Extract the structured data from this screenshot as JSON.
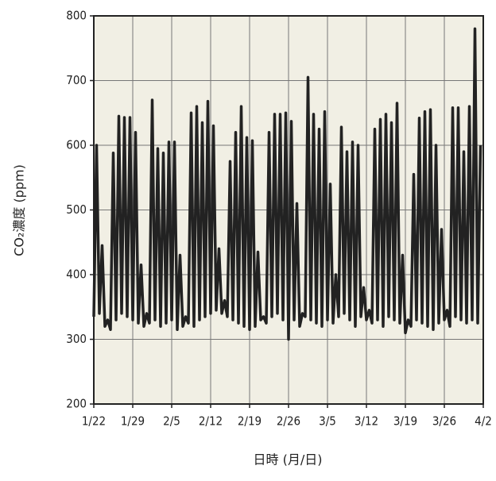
{
  "chart_data": {
    "type": "line",
    "y_label": "CO₂濃度 (ppm)",
    "x_label": "日時 (月/日)",
    "xlim": [
      0,
      70
    ],
    "xticks": [
      {
        "value": 0,
        "label": "1/22"
      },
      {
        "value": 7,
        "label": "1/29"
      },
      {
        "value": 14,
        "label": "2/5"
      },
      {
        "value": 21,
        "label": "2/12"
      },
      {
        "value": 28,
        "label": "2/19"
      },
      {
        "value": 35,
        "label": "2/26"
      },
      {
        "value": 42,
        "label": "3/5"
      },
      {
        "value": 49,
        "label": "3/12"
      },
      {
        "value": 56,
        "label": "3/19"
      },
      {
        "value": 63,
        "label": "3/26"
      },
      {
        "value": 70,
        "label": "4/2"
      }
    ],
    "ylim": [
      200,
      800
    ],
    "yticks": [
      200,
      300,
      400,
      500,
      600,
      700,
      800
    ],
    "grid": true,
    "x": [
      0,
      0.5,
      1,
      1.5,
      2,
      2.5,
      3,
      3.5,
      4,
      4.5,
      5,
      5.5,
      6,
      6.5,
      7,
      7.5,
      8,
      8.5,
      9,
      9.5,
      10,
      10.5,
      11,
      11.5,
      12,
      12.5,
      13,
      13.5,
      14,
      14.5,
      15,
      15.5,
      16,
      16.5,
      17,
      17.5,
      18,
      18.5,
      19,
      19.5,
      20,
      20.5,
      21,
      21.5,
      22,
      22.5,
      23,
      23.5,
      24,
      24.5,
      25,
      25.5,
      26,
      26.5,
      27,
      27.5,
      28,
      28.5,
      29,
      29.5,
      30,
      30.5,
      31,
      31.5,
      32,
      32.5,
      33,
      33.5,
      34,
      34.5,
      35,
      35.5,
      36,
      36.5,
      37,
      37.5,
      38,
      38.5,
      39,
      39.5,
      40,
      40.5,
      41,
      41.5,
      42,
      42.5,
      43,
      43.5,
      44,
      44.5,
      45,
      45.5,
      46,
      46.5,
      47,
      47.5,
      48,
      48.5,
      49,
      49.5,
      50,
      50.5,
      51,
      51.5,
      52,
      52.5,
      53,
      53.5,
      54,
      54.5,
      55,
      55.5,
      56,
      56.5,
      57,
      57.5,
      58,
      58.5,
      59,
      59.5,
      60,
      60.5,
      61,
      61.5,
      62,
      62.5,
      63,
      63.5,
      64,
      64.5,
      65,
      65.5,
      66,
      66.5,
      67,
      67.5,
      68,
      68.5,
      69,
      69.5
    ],
    "series": [
      {
        "color": "#222222",
        "values": [
          335,
          600,
          340,
          445,
          320,
          330,
          315,
          588,
          330,
          645,
          340,
          643,
          335,
          643,
          330,
          620,
          325,
          415,
          320,
          340,
          325,
          670,
          330,
          595,
          320,
          588,
          325,
          605,
          330,
          605,
          315,
          430,
          320,
          335,
          325,
          650,
          320,
          660,
          330,
          635,
          335,
          668,
          340,
          630,
          345,
          440,
          340,
          360,
          335,
          575,
          330,
          620,
          325,
          660,
          320,
          612,
          315,
          607,
          320,
          435,
          330,
          335,
          325,
          620,
          335,
          648,
          340,
          648,
          330,
          650,
          300,
          637,
          330,
          510,
          320,
          340,
          335,
          705,
          330,
          648,
          325,
          625,
          320,
          652,
          330,
          540,
          325,
          400,
          335,
          628,
          340,
          590,
          330,
          605,
          320,
          600,
          335,
          380,
          330,
          345,
          325,
          625,
          330,
          640,
          320,
          648,
          335,
          635,
          330,
          665,
          325,
          430,
          310,
          330,
          320,
          555,
          330,
          642,
          325,
          652,
          320,
          655,
          315,
          600,
          325,
          470,
          330,
          345,
          320,
          658,
          335,
          658,
          330,
          590,
          325,
          660,
          330,
          780,
          325,
          600
        ]
      }
    ]
  }
}
